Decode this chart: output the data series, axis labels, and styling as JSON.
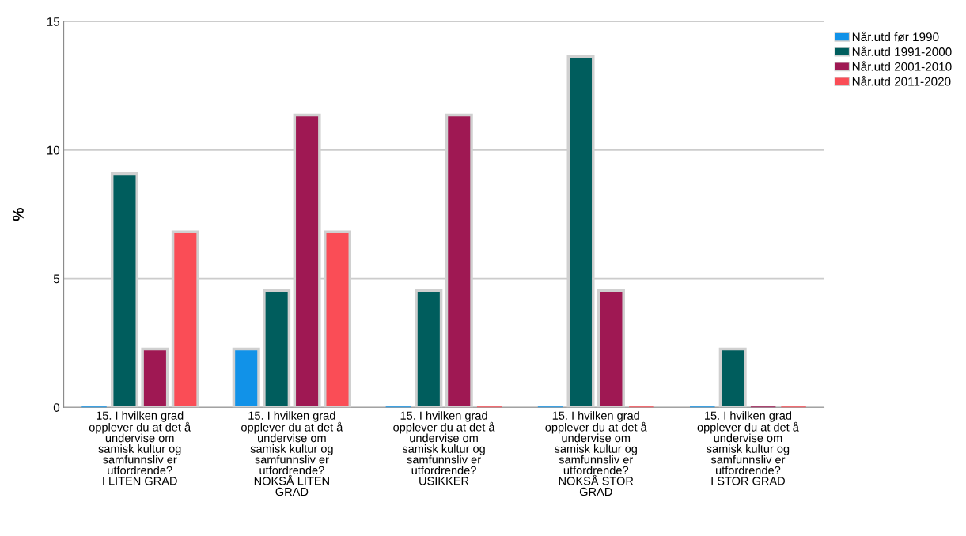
{
  "chart_data": {
    "type": "bar",
    "ylabel": "%",
    "categories": [
      "15. I hvilken grad\nopplever du at det å\nundervise om\nsamisk kultur og\nsamfunnsliv er\nutfordrende?\nI LITEN GRAD",
      "15. I hvilken grad\nopplever du at det å\nundervise om\nsamisk kultur og\nsamfunnsliv er\nutfordrende?\nNOKSÅ LITEN\nGRAD",
      "15. I hvilken grad\nopplever du at det å\nundervise om\nsamisk kultur og\nsamfunnsliv er\nutfordrende?\nUSIKKER",
      "15. I hvilken grad\nopplever du at det å\nundervise om\nsamisk kultur og\nsamfunnsliv er\nutfordrende?\nNOKSÅ STOR\nGRAD",
      "15. I hvilken grad\nopplever du at det å\nundervise om\nsamisk kultur og\nsamfunnsliv er\nutfordrende?\nI STOR GRAD"
    ],
    "series": [
      {
        "name": "Når.utd før 1990",
        "color": "#1192e8",
        "values": [
          0,
          2.27,
          0,
          0,
          0
        ]
      },
      {
        "name": "Når.utd 1991-2000",
        "color": "#005d5d",
        "values": [
          9.09,
          4.55,
          4.55,
          13.64,
          2.27
        ]
      },
      {
        "name": "Når.utd 2001-2010",
        "color": "#9f1853",
        "values": [
          2.27,
          11.36,
          11.36,
          4.55,
          0
        ]
      },
      {
        "name": "Når.utd 2011-2020",
        "color": "#fa4d56",
        "values": [
          6.82,
          6.82,
          0,
          0,
          0
        ]
      }
    ],
    "ylim": [
      0,
      15
    ],
    "yticks": [
      0,
      5,
      10,
      15
    ],
    "grid": "y",
    "legend": "top right"
  }
}
